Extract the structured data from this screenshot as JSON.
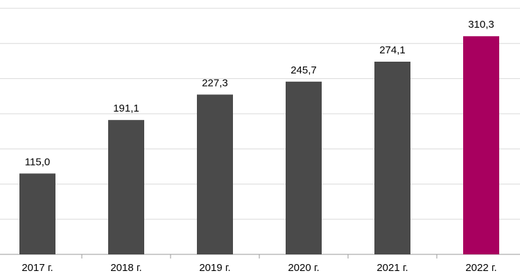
{
  "chart_data": {
    "type": "bar",
    "categories": [
      "2017 г.",
      "2018 г.",
      "2019 г.",
      "2020 г.",
      "2021 г.",
      "2022 г."
    ],
    "values": [
      115.0,
      191.1,
      227.3,
      245.7,
      274.1,
      310.3
    ],
    "value_labels": [
      "115,0",
      "191,1",
      "227,3",
      "245,7",
      "274,1",
      "310,3"
    ],
    "colors": [
      "#4a4a4a",
      "#4a4a4a",
      "#4a4a4a",
      "#4a4a4a",
      "#4a4a4a",
      "#a8005f"
    ],
    "ylim": [
      0,
      350
    ],
    "yticks": [
      0,
      50,
      100,
      150,
      200,
      250,
      300,
      350
    ],
    "grid": true
  }
}
